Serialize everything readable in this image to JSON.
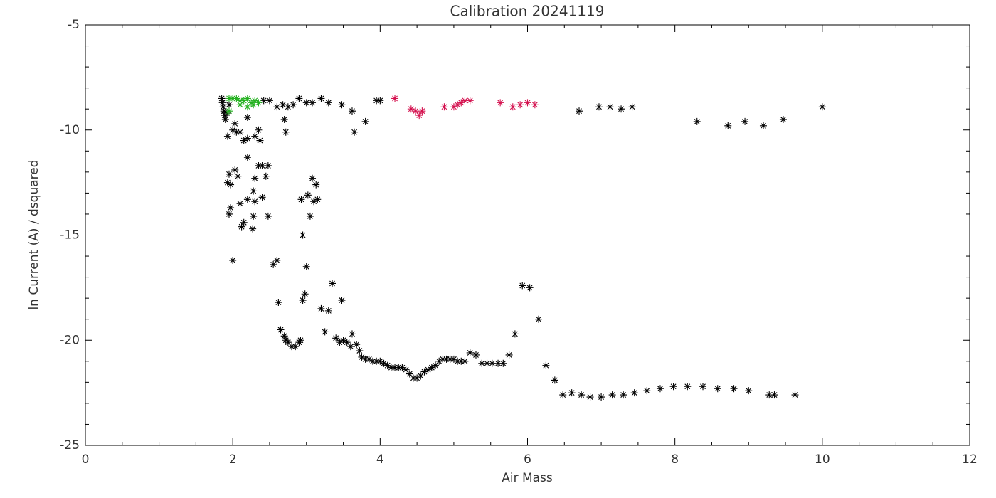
{
  "chart_data": {
    "type": "scatter",
    "title": "Calibration 20241119",
    "x_label": "Air Mass",
    "y_label": "ln Current (A) / dsquared",
    "xlim": [
      0,
      12
    ],
    "ylim": [
      -25,
      -5
    ],
    "xticks": [
      0,
      2,
      4,
      6,
      8,
      10,
      12
    ],
    "yticks": [
      -25,
      -20,
      -15,
      -10,
      -5
    ],
    "xminorticks": [
      0.5,
      1,
      1.5,
      2.5,
      3,
      3.5,
      4.5,
      5,
      5.5,
      6.5,
      7,
      7.5,
      8.5,
      9,
      9.5,
      10.5,
      11,
      11.5
    ],
    "yminorticks": [
      -24,
      -23,
      -22,
      -21,
      -19,
      -18,
      -17,
      -16,
      -14,
      -13,
      -12,
      -11,
      -9,
      -8,
      -7,
      -6
    ],
    "marker": "asterisk",
    "series": [
      {
        "color": "#000000",
        "x": [
          1.85,
          1.86,
          1.87,
          1.88,
          1.89,
          1.9,
          1.92,
          1.95,
          1.93,
          2.0,
          2.03,
          2.05,
          2.1,
          2.15,
          2.2,
          2.2,
          2.3,
          2.35,
          2.37,
          1.95,
          1.93,
          1.97,
          2.03,
          2.07,
          2.2,
          2.3,
          2.35,
          2.4,
          2.45,
          2.48,
          1.97,
          1.95,
          2.1,
          2.15,
          2.12,
          2.2,
          2.28,
          2.3,
          2.28,
          2.4,
          2.48,
          2.27,
          2.0,
          2.55,
          2.6,
          2.62,
          2.93,
          2.95,
          3.02,
          3.05,
          3.08,
          3.1,
          3.13,
          3.15,
          3.0,
          2.95,
          2.98,
          3.2,
          3.3,
          3.35,
          3.48,
          2.65,
          2.7,
          2.72,
          2.75,
          2.8,
          2.85,
          2.9,
          2.92,
          3.25,
          3.4,
          3.45,
          3.5,
          3.55,
          3.6,
          3.62,
          3.68,
          3.72,
          3.75,
          3.8,
          3.85,
          3.9,
          3.95,
          4.0,
          4.05,
          4.1,
          4.15,
          4.2,
          4.25,
          4.3,
          4.35,
          4.4,
          4.45,
          4.5,
          4.55,
          4.6,
          4.65,
          4.7,
          4.75,
          4.8,
          4.85,
          4.9,
          4.95,
          5.0,
          5.05,
          5.1,
          5.15,
          5.22,
          5.3,
          5.38,
          5.45,
          5.52,
          5.6,
          5.67,
          5.75,
          5.83,
          5.93,
          6.03,
          6.15,
          6.25,
          6.37,
          6.48,
          6.6,
          6.73,
          6.85,
          7.0,
          7.15,
          7.3,
          7.45,
          7.62,
          7.8,
          7.98,
          8.17,
          8.38,
          8.58,
          8.8,
          9.0,
          9.28,
          9.35,
          9.63,
          2.42,
          2.5,
          2.6,
          2.68,
          2.75,
          2.82,
          2.9,
          3.0,
          3.08,
          3.2,
          3.3,
          3.48,
          3.62,
          3.65,
          3.8,
          3.95,
          4.0,
          6.7,
          6.97,
          7.12,
          7.27,
          7.42,
          8.3,
          8.72,
          8.95,
          9.2,
          9.47,
          10.0,
          2.7,
          2.72
        ],
        "values": [
          -8.5,
          -8.7,
          -8.9,
          -9.1,
          -9.3,
          -9.5,
          -9.2,
          -8.8,
          -10.3,
          -10.0,
          -9.7,
          -10.1,
          -10.1,
          -10.5,
          -10.4,
          -9.4,
          -10.3,
          -10.0,
          -10.5,
          -12.1,
          -12.5,
          -12.6,
          -11.9,
          -12.2,
          -11.3,
          -12.3,
          -11.7,
          -11.7,
          -12.2,
          -11.7,
          -13.7,
          -14.0,
          -13.5,
          -14.4,
          -14.6,
          -13.3,
          -14.1,
          -13.4,
          -12.9,
          -13.2,
          -14.1,
          -14.7,
          -16.2,
          -16.4,
          -16.2,
          -18.2,
          -13.3,
          -15.0,
          -13.1,
          -14.1,
          -12.3,
          -13.4,
          -12.6,
          -13.3,
          -16.5,
          -18.1,
          -17.8,
          -18.5,
          -18.6,
          -17.3,
          -18.1,
          -19.5,
          -19.8,
          -20.0,
          -20.1,
          -20.3,
          -20.3,
          -20.1,
          -20.0,
          -19.6,
          -19.9,
          -20.1,
          -20.0,
          -20.1,
          -20.3,
          -19.7,
          -20.2,
          -20.5,
          -20.8,
          -20.9,
          -20.9,
          -21.0,
          -21.0,
          -21.0,
          -21.1,
          -21.2,
          -21.3,
          -21.3,
          -21.3,
          -21.3,
          -21.4,
          -21.6,
          -21.8,
          -21.8,
          -21.7,
          -21.5,
          -21.4,
          -21.3,
          -21.2,
          -21.0,
          -20.9,
          -20.9,
          -20.9,
          -20.9,
          -21.0,
          -21.0,
          -21.0,
          -20.6,
          -20.7,
          -21.1,
          -21.1,
          -21.1,
          -21.1,
          -21.1,
          -20.7,
          -19.7,
          -17.4,
          -17.5,
          -19.0,
          -21.2,
          -21.9,
          -22.6,
          -22.5,
          -22.6,
          -22.7,
          -22.7,
          -22.6,
          -22.6,
          -22.5,
          -22.4,
          -22.3,
          -22.2,
          -22.2,
          -22.2,
          -22.3,
          -22.3,
          -22.4,
          -22.6,
          -22.6,
          -22.6,
          -8.6,
          -8.6,
          -8.9,
          -8.8,
          -8.9,
          -8.8,
          -8.5,
          -8.7,
          -8.7,
          -8.5,
          -8.7,
          -8.8,
          -9.1,
          -10.1,
          -9.6,
          -8.6,
          -8.6,
          -9.1,
          -8.9,
          -8.9,
          -9.0,
          -8.9,
          -9.6,
          -9.8,
          -9.6,
          -9.8,
          -9.5,
          -8.9,
          -9.5,
          -10.1
        ]
      },
      {
        "color": "#22b01e",
        "x": [
          1.95,
          2.0,
          2.05,
          2.1,
          2.15,
          2.2,
          2.25,
          2.3,
          2.35,
          1.95,
          2.2,
          2.1,
          2.28
        ],
        "values": [
          -8.5,
          -8.5,
          -8.5,
          -8.6,
          -8.6,
          -8.5,
          -8.7,
          -8.6,
          -8.7,
          -9.1,
          -8.9,
          -8.8,
          -8.8
        ]
      },
      {
        "color": "#d4104e",
        "x": [
          4.2,
          4.42,
          4.48,
          4.53,
          4.57,
          4.87,
          5.0,
          5.05,
          5.1,
          5.15,
          5.22,
          5.63,
          5.8,
          5.9,
          6.0,
          6.1
        ],
        "values": [
          -8.5,
          -9.0,
          -9.1,
          -9.3,
          -9.1,
          -8.9,
          -8.9,
          -8.8,
          -8.7,
          -8.6,
          -8.6,
          -8.7,
          -8.9,
          -8.8,
          -8.7,
          -8.8
        ]
      }
    ]
  }
}
